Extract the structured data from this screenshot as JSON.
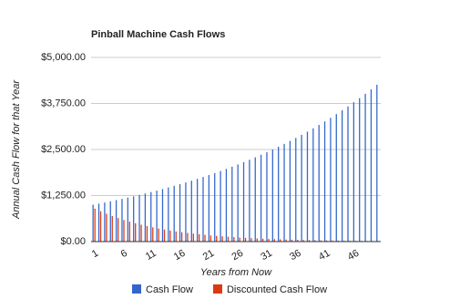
{
  "chart_data": {
    "type": "bar",
    "title": "Pinball Machine Cash Flows",
    "x_label": "Years from Now",
    "y_label": "Annual Cash Flow for that Year",
    "categories": [
      "1",
      null,
      null,
      null,
      null,
      "6",
      null,
      null,
      null,
      null,
      "11",
      null,
      null,
      null,
      null,
      "16",
      null,
      null,
      null,
      null,
      "21",
      null,
      null,
      null,
      null,
      "26",
      null,
      null,
      null,
      null,
      "31",
      null,
      null,
      null,
      null,
      "36",
      null,
      null,
      null,
      null,
      "41",
      null,
      null,
      null,
      null,
      "46",
      null,
      null,
      null,
      null
    ],
    "series": [
      {
        "name": "Cash Flow",
        "color": "#3366cc",
        "values": [
          1000,
          1030,
          1061,
          1093,
          1126,
          1159,
          1194,
          1230,
          1267,
          1305,
          1344,
          1384,
          1426,
          1469,
          1513,
          1558,
          1605,
          1653,
          1702,
          1754,
          1806,
          1860,
          1916,
          1974,
          2033,
          2094,
          2157,
          2221,
          2288,
          2357,
          2427,
          2500,
          2575,
          2652,
          2732,
          2814,
          2898,
          2985,
          3075,
          3167,
          3262,
          3360,
          3461,
          3565,
          3671,
          3782,
          3895,
          4012,
          4132,
          4256
        ]
      },
      {
        "name": "Discounted Cash Flow",
        "color": "#dc3912",
        "values": [
          893,
          821,
          755,
          694,
          639,
          587,
          540,
          497,
          457,
          420,
          386,
          355,
          327,
          300,
          276,
          254,
          234,
          215,
          198,
          182,
          167,
          154,
          141,
          130,
          120,
          110,
          101,
          93,
          86,
          79,
          72,
          67,
          61,
          56,
          52,
          48,
          44,
          40,
          37,
          34,
          31,
          29,
          26,
          24,
          22,
          21,
          19,
          17,
          16,
          15
        ]
      }
    ],
    "ylim": [
      0,
      5000
    ],
    "yticks": [
      {
        "value": 0,
        "label": "$0.00"
      },
      {
        "value": 1250,
        "label": "$1,250.00"
      },
      {
        "value": 2500,
        "label": "$2,500.00"
      },
      {
        "value": 3750,
        "label": "$3,750.00"
      },
      {
        "value": 5000,
        "label": "$5,000.00"
      }
    ],
    "grid": true,
    "legend": "bottom"
  }
}
